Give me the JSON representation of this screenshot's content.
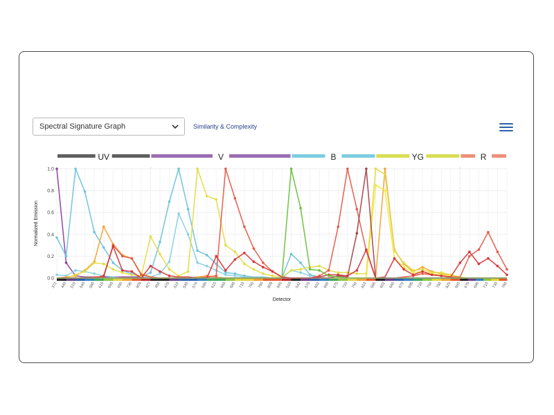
{
  "controls": {
    "dropdown_value": "Spectral Signature Graph",
    "link_label": "Similarity & Complexity",
    "menu_icon": "hamburger-menu-icon"
  },
  "chart_data": {
    "type": "line",
    "ylabel": "Normalized Emission",
    "xlabel": "Detector",
    "ylim": [
      0,
      1
    ],
    "yticks": [
      "0.0",
      "0.2",
      "0.4",
      "0.6",
      "0.8",
      "1.0"
    ],
    "grid": true,
    "lasers": [
      {
        "name": "UV",
        "color": "#5f5f5f",
        "start": 0,
        "end": 10
      },
      {
        "name": "V",
        "color": "#9c6db3",
        "start": 10,
        "end": 25
      },
      {
        "name": "B",
        "color": "#7ccde0",
        "start": 25,
        "end": 34
      },
      {
        "name": "YG",
        "color": "#d9de55",
        "start": 34,
        "end": 43
      },
      {
        "name": "R",
        "color": "#ee8f78",
        "start": 43,
        "end": 49
      }
    ],
    "categories": [
      "372",
      "440",
      "515",
      "540",
      "580",
      "615",
      "660",
      "695",
      "736",
      "809",
      "427",
      "450",
      "470",
      "510",
      "540",
      "576",
      "595",
      "615",
      "660",
      "680",
      "710",
      "750",
      "780",
      "809",
      "845",
      "510",
      "542",
      "576",
      "602",
      "660",
      "675",
      "710",
      "750",
      "810",
      "585",
      "602",
      "660",
      "670",
      "695",
      "720",
      "750",
      "780",
      "825",
      "660",
      "675",
      "690",
      "710",
      "730",
      "780"
    ],
    "series": [
      {
        "color": "#8e3fa0",
        "values": [
          1.0,
          0.14,
          0.02,
          0.01,
          0.01,
          0.01,
          0.01,
          0.01,
          0.01,
          0.01,
          0,
          0,
          0,
          0,
          0,
          0,
          0,
          0,
          0,
          0,
          0,
          0,
          0,
          0,
          0,
          0,
          0,
          0,
          0,
          0,
          0,
          0,
          0,
          0,
          0,
          0,
          0,
          0,
          0,
          0,
          0,
          0,
          0,
          0,
          0,
          0,
          0,
          0,
          0
        ]
      },
      {
        "color": "#6cc3da",
        "values": [
          0.37,
          0.2,
          1.0,
          0.79,
          0.42,
          0.28,
          0.14,
          0.07,
          0.04,
          0.01,
          0.05,
          0.33,
          0.7,
          1.0,
          0.63,
          0.25,
          0.21,
          0.13,
          0.05,
          0.04,
          0.02,
          0.01,
          0.01,
          0.0,
          0.0,
          0.22,
          0.14,
          0.03,
          0.01,
          0.0,
          0,
          0,
          0,
          0,
          0,
          0,
          0,
          0,
          0,
          0,
          0,
          0,
          0,
          0,
          0,
          0,
          0,
          0,
          0
        ]
      },
      {
        "color": "#8ad0e0",
        "values": [
          0.03,
          0.02,
          0.07,
          0.06,
          0.04,
          0.02,
          0.01,
          0.0,
          0.0,
          0.0,
          0.01,
          0.04,
          0.15,
          0.59,
          0.4,
          0.14,
          0.11,
          0.07,
          0.03,
          0.02,
          0.01,
          0.01,
          0.0,
          0.0,
          0.0,
          0.07,
          0.05,
          0.02,
          0.01,
          0,
          0,
          0,
          0,
          0,
          0,
          0,
          0,
          0,
          0,
          0,
          0,
          0,
          0,
          0,
          0,
          0,
          0,
          0,
          0
        ]
      },
      {
        "color": "#f2a23a",
        "values": [
          0.0,
          0.01,
          0.02,
          0.07,
          0.15,
          0.47,
          0.31,
          0.21,
          0.18,
          0.04,
          0.01,
          0.0,
          0.0,
          0.0,
          0.0,
          0.01,
          0.02,
          0.01,
          0.0,
          0,
          0,
          0,
          0,
          0,
          0,
          0,
          0,
          0,
          0,
          0,
          0,
          0,
          0,
          0,
          0,
          1.0,
          0.26,
          0.13,
          0.06,
          0.1,
          0.06,
          0.04,
          0.03,
          0.0,
          0,
          0,
          0,
          0,
          0
        ]
      },
      {
        "color": "#e3dc45",
        "values": [
          0.0,
          0.0,
          0.03,
          0.06,
          0.14,
          0.13,
          0.08,
          0.05,
          0.03,
          0.02,
          0.38,
          0.22,
          0.08,
          0.02,
          0.06,
          1.0,
          0.75,
          0.72,
          0.3,
          0.24,
          0.13,
          0.08,
          0.04,
          0.02,
          0.01,
          0.07,
          0.08,
          0.1,
          0.11,
          0.07,
          0.05,
          0.05,
          0.04,
          0.04,
          1.0,
          0.95,
          0.25,
          0.14,
          0.07,
          0.08,
          0.05,
          0.05,
          0.03,
          0.01,
          0,
          0,
          0,
          0,
          0
        ]
      },
      {
        "color": "#f2e84a",
        "values": [
          0,
          0,
          0,
          0,
          0,
          0,
          0,
          0,
          0,
          0,
          0,
          0,
          0,
          0,
          0,
          0,
          0,
          0,
          0,
          0,
          0,
          0,
          0,
          0,
          0,
          0,
          0,
          0,
          0,
          0,
          0,
          0,
          0,
          0,
          0.85,
          0.8,
          0.18,
          0.1,
          0.05,
          0.06,
          0.04,
          0.03,
          0.02,
          0.0,
          0,
          0,
          0,
          0,
          0
        ]
      },
      {
        "color": "#e45a4a",
        "values": [
          0.0,
          0.0,
          0.0,
          0.0,
          0.01,
          0.01,
          0.3,
          0.2,
          0.18,
          0.03,
          0.01,
          0.0,
          0.0,
          0.0,
          0.0,
          0.0,
          0.01,
          0.02,
          1.0,
          0.73,
          0.47,
          0.27,
          0.14,
          0.06,
          0.01,
          0.0,
          0.0,
          0.0,
          0.02,
          0.07,
          0.47,
          1.0,
          0.63,
          0.25,
          0.0,
          0.0,
          0.0,
          0.01,
          0.02,
          0.04,
          0.03,
          0.02,
          0.01,
          0.01,
          0.2,
          0.26,
          0.42,
          0.24,
          0.08
        ]
      },
      {
        "color": "#d4363a",
        "values": [
          0.0,
          0.0,
          0.0,
          0.0,
          0.0,
          0.02,
          0.29,
          0.07,
          0.06,
          0.0,
          0.11,
          0.06,
          0.02,
          0.01,
          0.01,
          0.0,
          0.0,
          0.2,
          0.07,
          0.17,
          0.23,
          0.15,
          0.1,
          0.06,
          0.01,
          0.0,
          0.0,
          0.0,
          0.01,
          0.03,
          0.03,
          0.02,
          0.07,
          0.26,
          0.0,
          0.01,
          0.18,
          0.08,
          0.03,
          0.06,
          0.03,
          0.02,
          0.01,
          0.14,
          0.24,
          0.13,
          0.18,
          0.11,
          0.03
        ]
      },
      {
        "color": "#a8424a",
        "values": [
          0,
          0,
          0,
          0,
          0,
          0,
          0,
          0,
          0,
          0,
          0,
          0,
          0,
          0,
          0,
          0,
          0,
          0,
          0,
          0,
          0,
          0,
          0,
          0,
          0,
          0,
          0,
          0,
          0,
          0,
          0.02,
          0.01,
          0.41,
          1.0,
          0.0,
          0,
          0,
          0,
          0,
          0,
          0,
          0,
          0,
          0,
          0,
          0,
          0,
          0,
          0
        ]
      },
      {
        "color": "#6cbf3c",
        "values": [
          0,
          0,
          0,
          0,
          0,
          0,
          0,
          0,
          0,
          0,
          0,
          0,
          0,
          0,
          0,
          0,
          0,
          0,
          0,
          0,
          0,
          0,
          0,
          0,
          0.0,
          1.0,
          0.64,
          0.08,
          0.07,
          0.02,
          0.01,
          0.0,
          0.0,
          0.0,
          0,
          0,
          0,
          0,
          0,
          0,
          0,
          0,
          0,
          0,
          0,
          0,
          0,
          0,
          0
        ]
      }
    ]
  }
}
